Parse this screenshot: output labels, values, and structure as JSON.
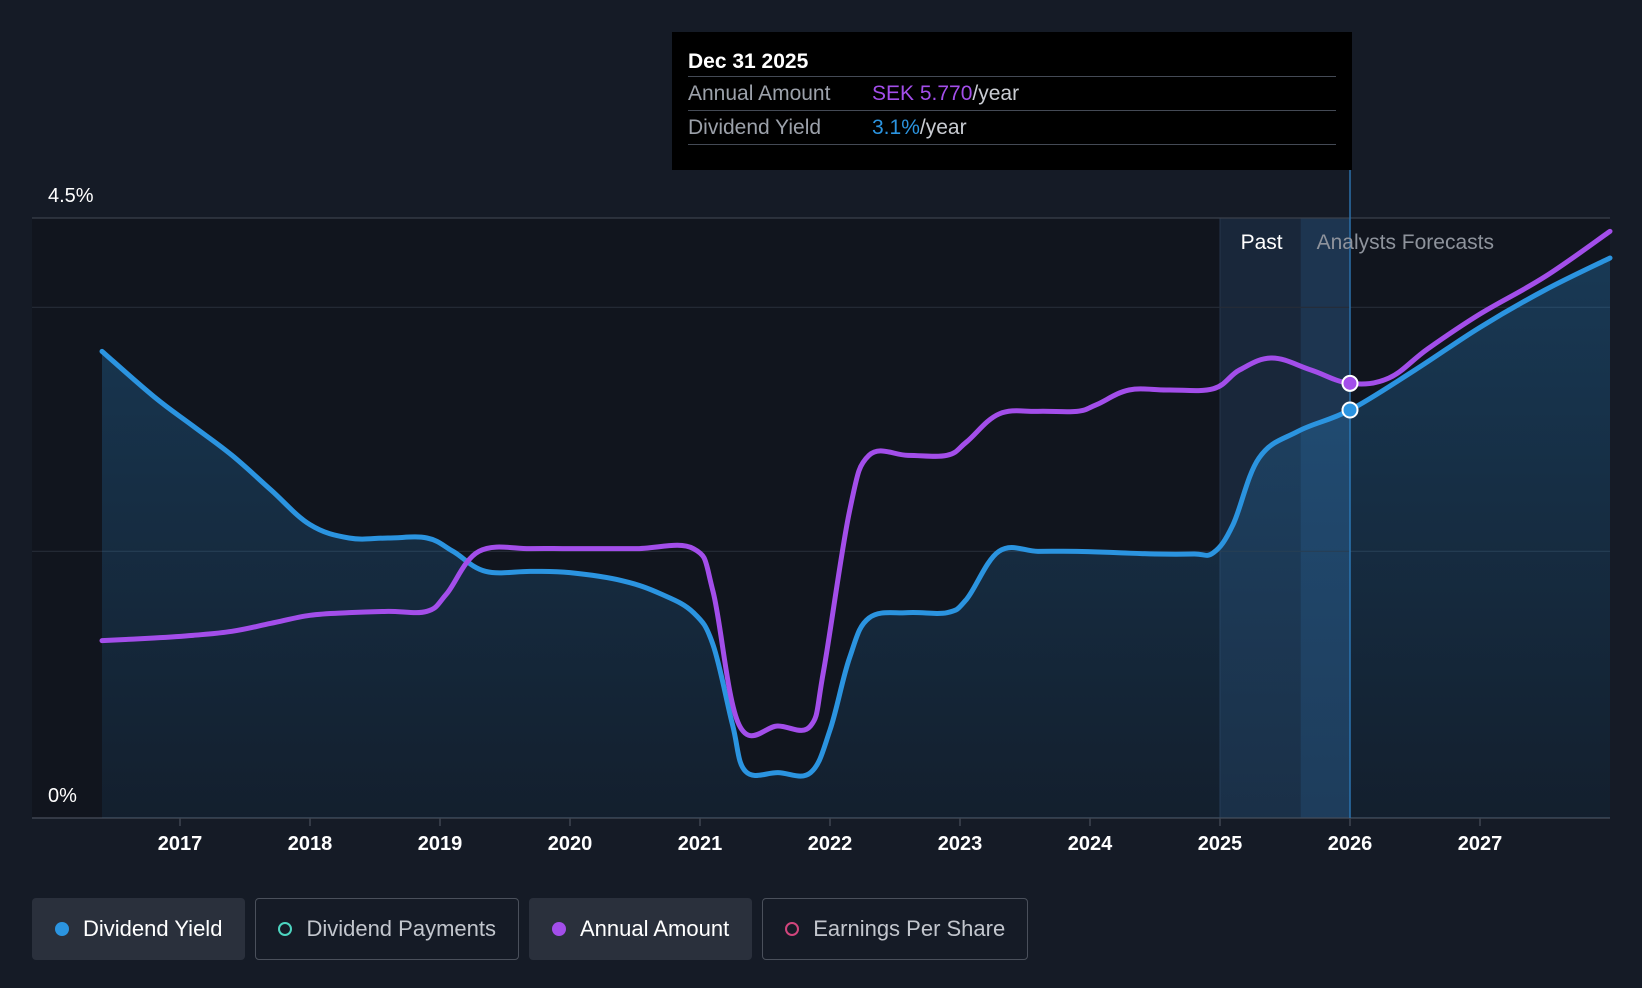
{
  "chart_data": {
    "type": "line",
    "y_axis": {
      "max_label": "4.5%",
      "min_label": "0%",
      "ylim": [
        0,
        4.5
      ]
    },
    "x_axis": {
      "tick_labels": [
        "2017",
        "2018",
        "2019",
        "2020",
        "2021",
        "2022",
        "2023",
        "2024",
        "2025",
        "2026",
        "2027"
      ],
      "xlim": [
        2015.9,
        2028.0
      ]
    },
    "regions": {
      "past_label": "Past",
      "forecast_label": "Analysts Forecasts",
      "past_start": 2025.0,
      "divider": 2025.62,
      "forecast_start": 2026.0
    },
    "series": [
      {
        "name": "Dividend Yield",
        "color": "#2b94e0",
        "area": true,
        "points": [
          [
            2016.4,
            3.5
          ],
          [
            2016.8,
            3.16
          ],
          [
            2017.1,
            2.94
          ],
          [
            2017.4,
            2.72
          ],
          [
            2017.7,
            2.46
          ],
          [
            2018.0,
            2.2
          ],
          [
            2018.3,
            2.1
          ],
          [
            2018.6,
            2.1
          ],
          [
            2018.9,
            2.1
          ],
          [
            2019.1,
            2.0
          ],
          [
            2019.35,
            1.85
          ],
          [
            2019.7,
            1.85
          ],
          [
            2020.0,
            1.84
          ],
          [
            2020.4,
            1.78
          ],
          [
            2020.7,
            1.68
          ],
          [
            2020.95,
            1.54
          ],
          [
            2021.1,
            1.3
          ],
          [
            2021.25,
            0.7
          ],
          [
            2021.35,
            0.35
          ],
          [
            2021.6,
            0.34
          ],
          [
            2021.85,
            0.34
          ],
          [
            2022.0,
            0.66
          ],
          [
            2022.15,
            1.2
          ],
          [
            2022.3,
            1.5
          ],
          [
            2022.6,
            1.54
          ],
          [
            2022.9,
            1.54
          ],
          [
            2023.05,
            1.64
          ],
          [
            2023.3,
            2.0
          ],
          [
            2023.6,
            2.0
          ],
          [
            2023.9,
            2.0
          ],
          [
            2024.2,
            1.99
          ],
          [
            2024.5,
            1.98
          ],
          [
            2024.8,
            1.98
          ],
          [
            2024.95,
            1.99
          ],
          [
            2025.1,
            2.2
          ],
          [
            2025.3,
            2.7
          ],
          [
            2025.6,
            2.9
          ],
          [
            2026.0,
            3.06
          ],
          [
            2026.5,
            3.36
          ],
          [
            2027.0,
            3.68
          ],
          [
            2027.5,
            3.96
          ],
          [
            2028.0,
            4.2
          ]
        ]
      },
      {
        "name": "Annual Amount",
        "color": "#a34eea",
        "area": false,
        "points": [
          [
            2016.4,
            1.33
          ],
          [
            2016.8,
            1.35
          ],
          [
            2017.1,
            1.37
          ],
          [
            2017.4,
            1.4
          ],
          [
            2017.7,
            1.46
          ],
          [
            2018.0,
            1.52
          ],
          [
            2018.3,
            1.54
          ],
          [
            2018.6,
            1.55
          ],
          [
            2018.9,
            1.55
          ],
          [
            2019.05,
            1.68
          ],
          [
            2019.3,
            2.0
          ],
          [
            2019.7,
            2.02
          ],
          [
            2020.0,
            2.02
          ],
          [
            2020.5,
            2.02
          ],
          [
            2020.95,
            2.02
          ],
          [
            2021.1,
            1.7
          ],
          [
            2021.3,
            0.7
          ],
          [
            2021.6,
            0.69
          ],
          [
            2021.85,
            0.69
          ],
          [
            2021.95,
            1.1
          ],
          [
            2022.15,
            2.3
          ],
          [
            2022.3,
            2.72
          ],
          [
            2022.6,
            2.72
          ],
          [
            2022.9,
            2.72
          ],
          [
            2023.05,
            2.82
          ],
          [
            2023.3,
            3.03
          ],
          [
            2023.6,
            3.05
          ],
          [
            2023.9,
            3.05
          ],
          [
            2024.05,
            3.1
          ],
          [
            2024.3,
            3.21
          ],
          [
            2024.6,
            3.21
          ],
          [
            2024.95,
            3.22
          ],
          [
            2025.15,
            3.36
          ],
          [
            2025.4,
            3.45
          ],
          [
            2025.7,
            3.36
          ],
          [
            2026.0,
            3.26
          ],
          [
            2026.3,
            3.3
          ],
          [
            2026.6,
            3.52
          ],
          [
            2027.0,
            3.78
          ],
          [
            2027.5,
            4.06
          ],
          [
            2028.0,
            4.4
          ]
        ]
      }
    ],
    "highlight_x": 2026.0,
    "highlight_values": {
      "Dividend Yield": 3.06,
      "Annual Amount": 3.26
    }
  },
  "tooltip": {
    "date": "Dec 31 2025",
    "rows": [
      {
        "label": "Annual Amount",
        "value": "SEK 5.770",
        "unit": "/year",
        "color": "#a34eea"
      },
      {
        "label": "Dividend Yield",
        "value": "3.1%",
        "unit": "/year",
        "color": "#2b94e0"
      }
    ]
  },
  "legend": [
    {
      "label": "Dividend Yield",
      "color": "#2b94e0",
      "active": true,
      "filled": true
    },
    {
      "label": "Dividend Payments",
      "color": "#4dd5c0",
      "active": false,
      "filled": false
    },
    {
      "label": "Annual Amount",
      "color": "#a34eea",
      "active": true,
      "filled": true
    },
    {
      "label": "Earnings Per Share",
      "color": "#d1457c",
      "active": false,
      "filled": false
    }
  ]
}
